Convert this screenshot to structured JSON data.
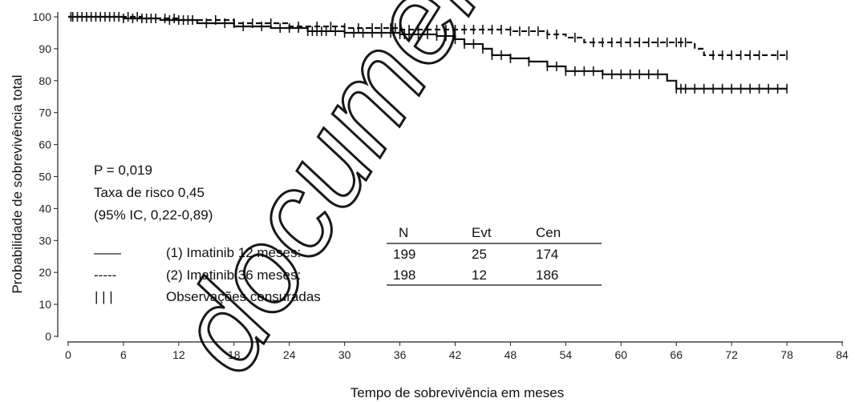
{
  "chart_data": {
    "type": "line",
    "xlabel": "Tempo de sobrevivência em meses",
    "ylabel": "Probabilidade de sobrevivência total",
    "xlim": [
      0,
      84
    ],
    "ylim": [
      0,
      100
    ],
    "x_ticks": [
      "0",
      "6",
      "12",
      "18",
      "24",
      "30",
      "36",
      "42",
      "48",
      "54",
      "60",
      "66",
      "72",
      "78",
      "84"
    ],
    "y_ticks": [
      "0",
      "10",
      "20",
      "30",
      "40",
      "50",
      "60",
      "70",
      "80",
      "90",
      "100"
    ],
    "grid": false,
    "series": [
      {
        "name": "(1) Imatinib 12 meses",
        "line_style": "solid",
        "points": [
          [
            0,
            100
          ],
          [
            6,
            99.5
          ],
          [
            10,
            99
          ],
          [
            14,
            98
          ],
          [
            18,
            97
          ],
          [
            22,
            96.5
          ],
          [
            26,
            95.5
          ],
          [
            30,
            95
          ],
          [
            36,
            94.5
          ],
          [
            40,
            94
          ],
          [
            42,
            93
          ],
          [
            43,
            91.5
          ],
          [
            45,
            90
          ],
          [
            46,
            88
          ],
          [
            48,
            87
          ],
          [
            50,
            86
          ],
          [
            52,
            84.5
          ],
          [
            54,
            83
          ],
          [
            58,
            82
          ],
          [
            62,
            82
          ],
          [
            64,
            82
          ],
          [
            65,
            80
          ],
          [
            66,
            77.5
          ],
          [
            78,
            77.5
          ]
        ],
        "censor_x": [
          0.3,
          1,
          2,
          3,
          4,
          5,
          6,
          7,
          8,
          9,
          11,
          12,
          13,
          15,
          17,
          19,
          21,
          23,
          24,
          25,
          26,
          26.5,
          27,
          27.5,
          28,
          29,
          30,
          31,
          32,
          33,
          34,
          35,
          36,
          36.5,
          37,
          38,
          39,
          40,
          41,
          42,
          43,
          44,
          45,
          46,
          47,
          48,
          50,
          52,
          53,
          54,
          55,
          56,
          57,
          58,
          59,
          60,
          61,
          62,
          63,
          64,
          66,
          66.5,
          67,
          68,
          69,
          70,
          71,
          72,
          73,
          74,
          75,
          76,
          77,
          78
        ]
      },
      {
        "name": "(2) Imatinib 36 meses",
        "line_style": "dashed",
        "points": [
          [
            0,
            100
          ],
          [
            8,
            99.5
          ],
          [
            12,
            99
          ],
          [
            18,
            98
          ],
          [
            24,
            97
          ],
          [
            30,
            96.5
          ],
          [
            36,
            96
          ],
          [
            42,
            96
          ],
          [
            48,
            95.5
          ],
          [
            52,
            94.5
          ],
          [
            54,
            93.5
          ],
          [
            56,
            92
          ],
          [
            60,
            92
          ],
          [
            66,
            92
          ],
          [
            68,
            90
          ],
          [
            69,
            88
          ],
          [
            78,
            88
          ]
        ],
        "censor_x": [
          0.5,
          1.5,
          2.5,
          3.5,
          4.5,
          5.5,
          6.5,
          7.5,
          8.5,
          9.5,
          10.5,
          11.5,
          12.5,
          13.5,
          16,
          18,
          20,
          22,
          25,
          27,
          28.5,
          30,
          31.5,
          33,
          34,
          35,
          35.5,
          36,
          37,
          38,
          39,
          40,
          41,
          42,
          43,
          44,
          45,
          46,
          47,
          48,
          49,
          50,
          51,
          52,
          53,
          55,
          57,
          58,
          59,
          60,
          61,
          62,
          63,
          64,
          65,
          66,
          66.5,
          67,
          70,
          71,
          72,
          73,
          74,
          75,
          77,
          78
        ]
      }
    ],
    "annotations": {
      "p_value": "P = 0,019",
      "hazard_ratio": "Taxa de risco 0,45",
      "ci": "(95% IC, 0,22-0,89)"
    },
    "legend": {
      "solid_symbol": "——",
      "dashed_symbol": "-----",
      "censor_symbol": "| | |",
      "censor_label": "Observações censuradas"
    },
    "table": {
      "headers": [
        "N",
        "Evt",
        "Cen"
      ],
      "rows": [
        {
          "label": "(1) Imatinib 12 meses:",
          "values": [
            "199",
            "25",
            "174"
          ]
        },
        {
          "label": "(2) Imatinib 36 meses:",
          "values": [
            "198",
            "12",
            "186"
          ]
        }
      ]
    }
  },
  "watermark": {
    "text": "documento já não"
  }
}
